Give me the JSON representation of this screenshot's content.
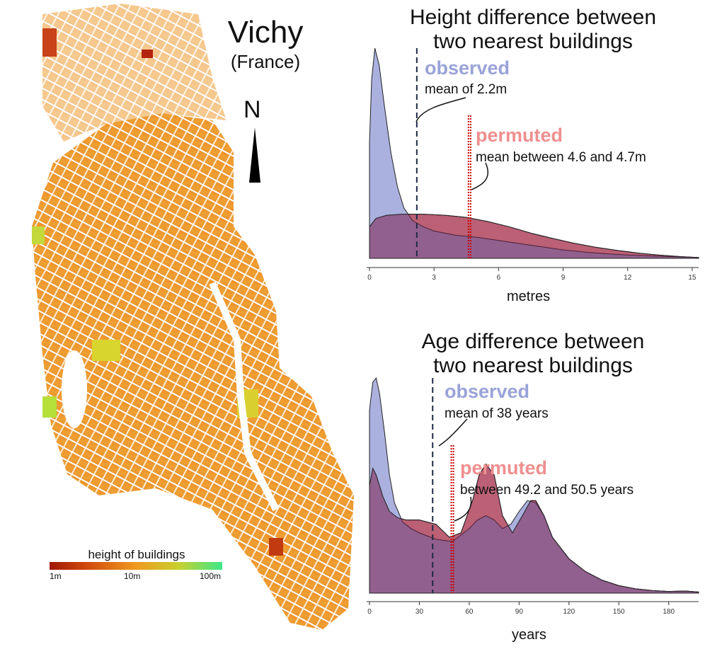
{
  "map": {
    "title": "Vichy",
    "subtitle": "(France)",
    "north": "N",
    "legend": {
      "title": "height of buildings",
      "ticks": [
        "1m",
        "10m",
        "100m"
      ]
    }
  },
  "chart_data": [
    {
      "type": "area",
      "title": "Height difference between two nearest buildings",
      "title_line1": "Height difference between",
      "title_line2": "two nearest buildings",
      "xlabel": "metres",
      "xlim": [
        0,
        15.3
      ],
      "xticks": [
        0,
        3,
        6,
        9,
        12,
        15
      ],
      "series": [
        {
          "name": "observed",
          "color": "#8f97d4",
          "x": [
            0,
            0.1,
            0.25,
            0.45,
            0.7,
            1.0,
            1.3,
            1.6,
            2.0,
            2.5,
            3.0,
            3.5,
            4.0,
            5.0,
            6.0,
            7.0,
            8.0,
            9.0,
            10.0,
            11.0,
            12.0,
            13.0,
            14.0,
            15.3
          ],
          "y": [
            0.55,
            0.85,
            1.0,
            0.92,
            0.72,
            0.5,
            0.34,
            0.24,
            0.18,
            0.15,
            0.13,
            0.12,
            0.11,
            0.1,
            0.085,
            0.07,
            0.055,
            0.04,
            0.03,
            0.022,
            0.016,
            0.012,
            0.008,
            0.004
          ]
        },
        {
          "name": "permuted",
          "color": "#ef8f8f",
          "x": [
            0,
            0.3,
            0.8,
            1.5,
            2.5,
            3.5,
            4.5,
            5.5,
            6.5,
            7.5,
            8.5,
            9.5,
            10.5,
            11.5,
            12.5,
            13.5,
            14.5,
            15.3
          ],
          "y": [
            0.15,
            0.19,
            0.205,
            0.21,
            0.21,
            0.205,
            0.195,
            0.175,
            0.15,
            0.12,
            0.095,
            0.072,
            0.053,
            0.038,
            0.025,
            0.015,
            0.008,
            0.004
          ]
        }
      ],
      "annotations": {
        "observed_label": "observed",
        "observed_mean_text": "mean of 2.2m",
        "observed_mean": 2.2,
        "permuted_label": "permuted",
        "permuted_mean_text": "mean between 4.6 and 4.7m",
        "permuted_mean_range": [
          4.6,
          4.7
        ]
      }
    },
    {
      "type": "area",
      "title": "Age difference between two nearest buildings",
      "title_line1": "Age difference between",
      "title_line2": "two nearest buildings",
      "xlabel": "years",
      "xlim": [
        0,
        198
      ],
      "xticks": [
        0,
        30,
        60,
        90,
        120,
        150,
        180
      ],
      "series": [
        {
          "name": "observed",
          "color": "#8f97d4",
          "x": [
            0,
            2,
            4,
            6,
            9,
            12,
            15,
            20,
            25,
            30,
            40,
            50,
            60,
            65,
            70,
            75,
            80,
            85,
            90,
            95,
            100,
            105,
            110,
            120,
            130,
            140,
            150,
            160,
            170,
            180,
            190,
            198
          ],
          "y": [
            0.85,
            0.98,
            1.0,
            0.93,
            0.75,
            0.55,
            0.42,
            0.33,
            0.3,
            0.28,
            0.25,
            0.24,
            0.3,
            0.34,
            0.36,
            0.34,
            0.3,
            0.32,
            0.38,
            0.43,
            0.42,
            0.36,
            0.26,
            0.16,
            0.1,
            0.06,
            0.035,
            0.02,
            0.012,
            0.008,
            0.01,
            0.005
          ]
        },
        {
          "name": "permuted",
          "color": "#ef8f8f",
          "x": [
            0,
            2,
            4,
            8,
            12,
            17,
            22,
            30,
            40,
            48,
            55,
            62,
            66,
            70,
            75,
            80,
            86,
            92,
            97,
            100,
            105,
            110,
            120,
            130,
            140,
            150,
            160,
            170,
            180,
            190,
            198
          ],
          "y": [
            0.5,
            0.58,
            0.55,
            0.45,
            0.38,
            0.35,
            0.34,
            0.34,
            0.32,
            0.26,
            0.28,
            0.43,
            0.55,
            0.6,
            0.55,
            0.36,
            0.28,
            0.36,
            0.43,
            0.43,
            0.36,
            0.26,
            0.16,
            0.1,
            0.06,
            0.035,
            0.02,
            0.012,
            0.008,
            0.01,
            0.005
          ]
        }
      ],
      "annotations": {
        "observed_label": "observed",
        "observed_mean_text": "mean of 38 years",
        "observed_mean": 38,
        "permuted_label": "permuted",
        "permuted_mean_text": "between 49.2 and 50.5 years",
        "permuted_mean_range": [
          49.2,
          50.5
        ]
      }
    }
  ]
}
